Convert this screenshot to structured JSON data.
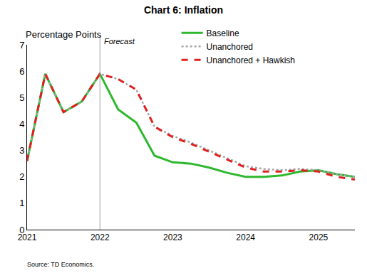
{
  "chart_data": {
    "type": "line",
    "title": "Chart 6: Inflation",
    "y_label": "Percentage Points",
    "source": "Source: TD Economics.",
    "forecast_line": {
      "x": "2022",
      "label": "Forecast"
    },
    "categories": [
      "2021",
      null,
      null,
      null,
      "2022",
      null,
      null,
      null,
      "2023",
      null,
      null,
      null,
      "2024",
      null,
      null,
      null,
      "2025",
      null,
      null
    ],
    "series": [
      {
        "name": "Baseline",
        "color": "#2eb82e",
        "line_style": "solid",
        "values": [
          2.6,
          5.9,
          4.45,
          4.85,
          5.9,
          4.55,
          4.05,
          2.8,
          2.55,
          2.5,
          2.35,
          2.15,
          2.0,
          2.0,
          2.05,
          2.2,
          2.25,
          2.1,
          2.0
        ]
      },
      {
        "name": "Unanchored",
        "color": "#a6a6a6",
        "line_style": "dotted",
        "values": [
          2.6,
          5.9,
          4.45,
          4.85,
          5.9,
          5.7,
          5.3,
          3.9,
          3.55,
          3.3,
          3.0,
          2.7,
          2.4,
          2.3,
          2.25,
          2.3,
          2.25,
          2.1,
          2.0
        ]
      },
      {
        "name": "Unanchored + Hawkish",
        "color": "#e02020",
        "line_style": "dashed",
        "values": [
          2.6,
          5.9,
          4.45,
          4.85,
          5.9,
          5.7,
          5.3,
          3.9,
          3.5,
          3.25,
          2.95,
          2.65,
          2.35,
          2.2,
          2.2,
          2.25,
          2.2,
          2.0,
          1.9
        ]
      }
    ],
    "ylim": [
      0,
      7
    ],
    "yticks": [
      0,
      1,
      2,
      3,
      4,
      5,
      6,
      7
    ],
    "grid": false,
    "legend": "top-right"
  }
}
